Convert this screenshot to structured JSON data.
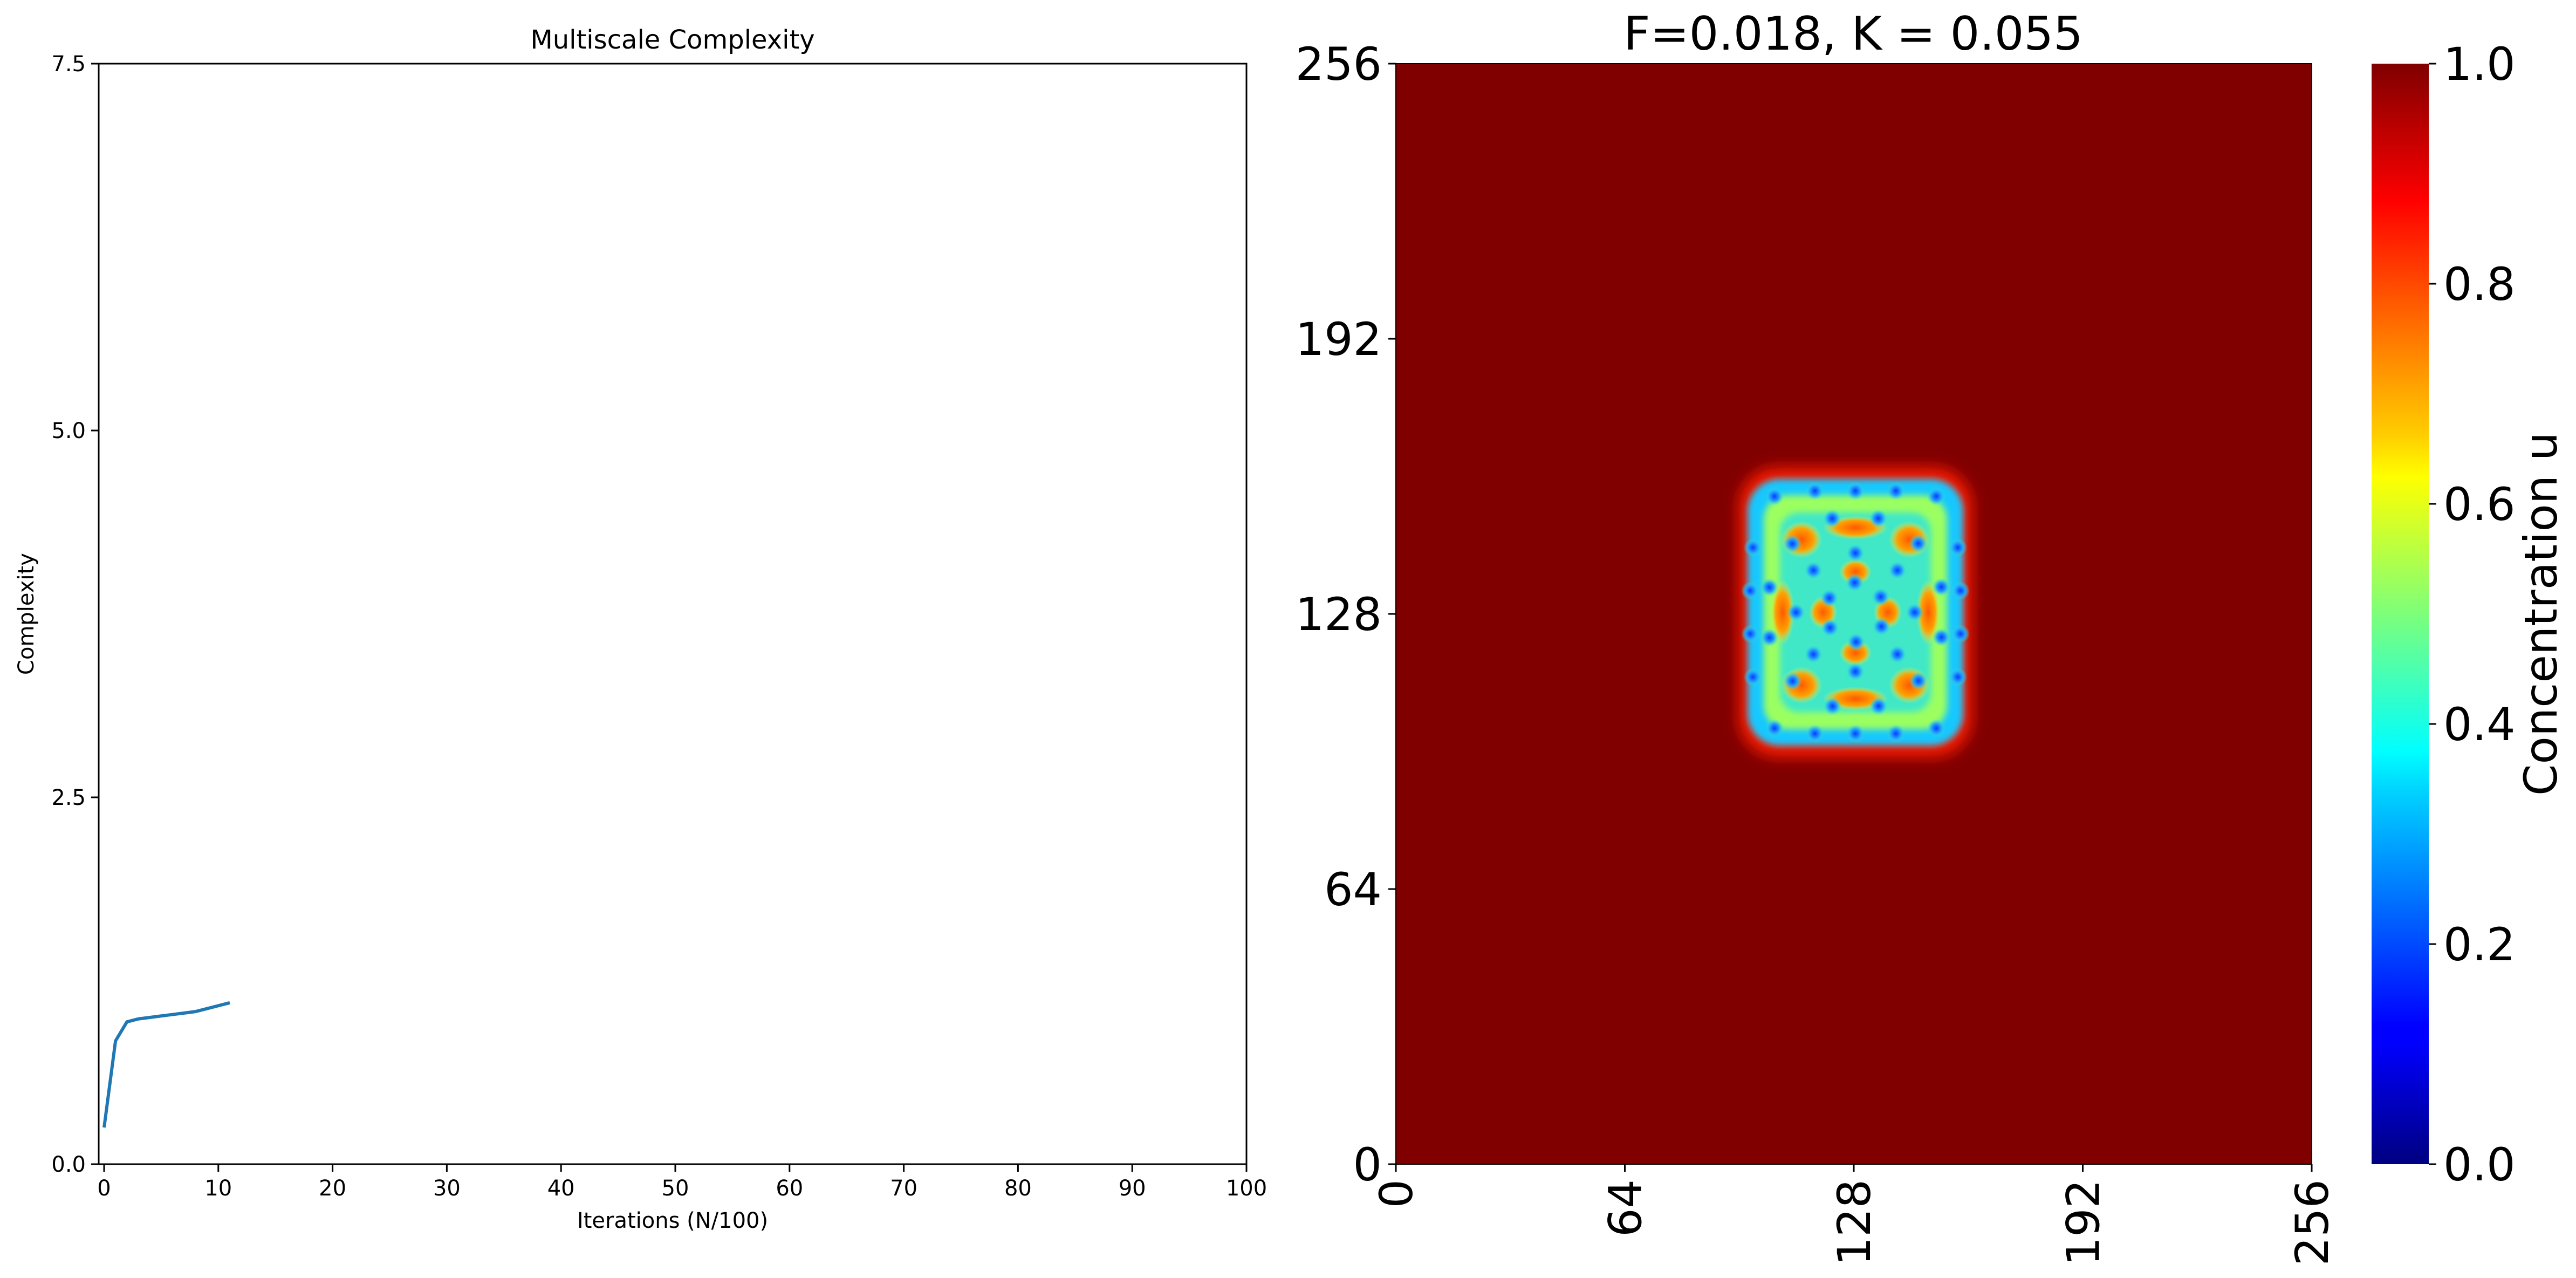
{
  "chart_data": [
    {
      "type": "line",
      "title": "Multiscale Complexity",
      "xlabel": "Iterations (N/100)",
      "ylabel": "Complexity",
      "xlim": [
        0,
        100
      ],
      "ylim": [
        0,
        7.5
      ],
      "xticks": [
        0,
        10,
        20,
        30,
        40,
        50,
        60,
        70,
        80,
        90,
        100
      ],
      "xtick_labels": [
        "0",
        "10",
        "20",
        "30",
        "40",
        "50",
        "60",
        "70",
        "80",
        "90",
        "100"
      ],
      "yticks": [
        0,
        2.5,
        5,
        7.5
      ],
      "ytick_labels": [
        "0.0",
        "2.5",
        "5.0",
        "7.5"
      ],
      "grid": false,
      "series": [
        {
          "name": "complexity",
          "color": "#1f77b4",
          "x": [
            0,
            1,
            2,
            3,
            4,
            5,
            6,
            7,
            8,
            9,
            10,
            11
          ],
          "y": [
            0.25,
            0.84,
            0.97,
            0.99,
            1.0,
            1.01,
            1.02,
            1.03,
            1.04,
            1.06,
            1.08,
            1.1
          ]
        }
      ]
    },
    {
      "type": "heatmap",
      "title": "F=0.018, K = 0.055",
      "xlim": [
        0,
        256
      ],
      "ylim": [
        0,
        256
      ],
      "xticks": [
        0,
        64,
        128,
        192,
        256
      ],
      "xtick_labels": [
        "0",
        "64",
        "128",
        "192",
        "256"
      ],
      "yticks": [
        0,
        64,
        128,
        192,
        256
      ],
      "ytick_labels": [
        "0",
        "64",
        "128",
        "192",
        "256"
      ],
      "background_value": 1.0,
      "pattern": {
        "x_range": [
          97,
          159
        ],
        "y_range": [
          96,
          160
        ],
        "description_values": "Gray-Scott reaction-diffusion spot pattern, concentration u between about 0.2 and 0.9 inside region"
      },
      "colormap": "jet",
      "colorbar": {
        "label": "Concentration u",
        "range": [
          0.0,
          1.0
        ],
        "ticks": [
          0.0,
          0.2,
          0.4,
          0.6,
          0.8,
          1.0
        ],
        "tick_labels": [
          "0.0",
          "0.2",
          "0.4",
          "0.6",
          "0.8",
          "1.0"
        ]
      }
    }
  ]
}
